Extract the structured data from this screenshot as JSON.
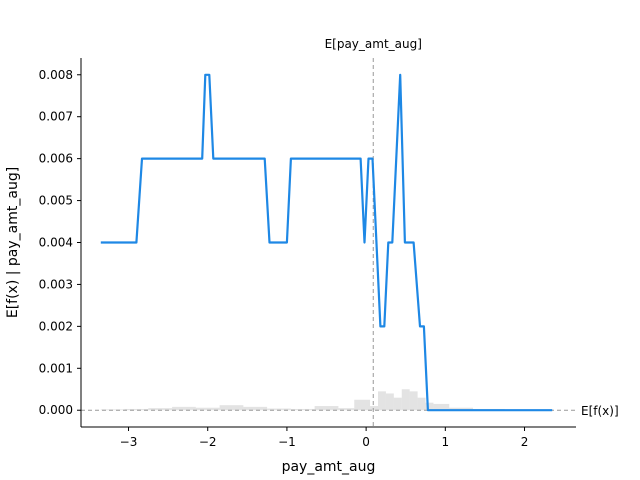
{
  "chart_data": {
    "type": "line",
    "xlabel": "pay_amt_aug",
    "ylabel": "E[f(x) | pay_amt_aug]",
    "xlim": [
      -3.6,
      2.65
    ],
    "ylim": [
      -0.0004,
      0.0084
    ],
    "xticks": [
      -3,
      -2,
      -1,
      0,
      1,
      2
    ],
    "xtick_labels": [
      "−3",
      "−2",
      "−1",
      "0",
      "1",
      "2"
    ],
    "yticks": [
      0.0,
      0.001,
      0.002,
      0.003,
      0.004,
      0.005,
      0.006,
      0.007,
      0.008
    ],
    "ytick_labels": [
      "0.000",
      "0.001",
      "0.002",
      "0.003",
      "0.004",
      "0.005",
      "0.006",
      "0.007",
      "0.008"
    ],
    "grid": false,
    "line_color": "#1E88E5",
    "reference_lines": {
      "vertical_x": 0.09,
      "vertical_label": "E[pay_amt_aug]",
      "horizontal_y": 0.0,
      "horizontal_label": "E[f(x)]",
      "color": "#999999"
    },
    "series": [
      {
        "x": [
          -3.35,
          -2.9,
          -2.83,
          -2.07,
          -2.03,
          -1.98,
          -1.93,
          -1.28,
          -1.22,
          -1.0,
          -0.95,
          -0.07,
          -0.02,
          0.03,
          0.08,
          0.18,
          0.23,
          0.28,
          0.33,
          0.43,
          0.49,
          0.55,
          0.6,
          0.68,
          0.73,
          0.78,
          0.85,
          2.35
        ],
        "y": [
          0.004,
          0.004,
          0.006,
          0.006,
          0.008,
          0.008,
          0.006,
          0.006,
          0.004,
          0.004,
          0.006,
          0.006,
          0.004,
          0.006,
          0.006,
          0.002,
          0.002,
          0.004,
          0.004,
          0.008,
          0.004,
          0.004,
          0.004,
          0.002,
          0.002,
          0.0,
          0.0,
          0.0
        ]
      }
    ],
    "histogram": {
      "color": "#cccccc",
      "bins": [
        {
          "x0": -3.35,
          "x1": -3.05,
          "h": 2e-05
        },
        {
          "x0": -3.05,
          "x1": -2.75,
          "h": 3e-05
        },
        {
          "x0": -2.75,
          "x1": -2.45,
          "h": 5e-05
        },
        {
          "x0": -2.45,
          "x1": -2.15,
          "h": 8e-05
        },
        {
          "x0": -2.15,
          "x1": -1.85,
          "h": 6e-05
        },
        {
          "x0": -1.85,
          "x1": -1.55,
          "h": 0.00012
        },
        {
          "x0": -1.55,
          "x1": -1.25,
          "h": 8e-05
        },
        {
          "x0": -1.25,
          "x1": -0.95,
          "h": 4e-05
        },
        {
          "x0": -0.95,
          "x1": -0.65,
          "h": 3e-05
        },
        {
          "x0": -0.65,
          "x1": -0.35,
          "h": 0.0001
        },
        {
          "x0": -0.35,
          "x1": -0.15,
          "h": 5e-05
        },
        {
          "x0": -0.15,
          "x1": 0.05,
          "h": 0.00025
        },
        {
          "x0": 0.05,
          "x1": 0.15,
          "h": 0.0001
        },
        {
          "x0": 0.15,
          "x1": 0.25,
          "h": 0.00045
        },
        {
          "x0": 0.25,
          "x1": 0.35,
          "h": 0.0004
        },
        {
          "x0": 0.35,
          "x1": 0.45,
          "h": 0.0003
        },
        {
          "x0": 0.45,
          "x1": 0.55,
          "h": 0.0005
        },
        {
          "x0": 0.55,
          "x1": 0.65,
          "h": 0.00045
        },
        {
          "x0": 0.65,
          "x1": 0.75,
          "h": 0.0003
        },
        {
          "x0": 0.75,
          "x1": 0.85,
          "h": 0.00018
        },
        {
          "x0": 0.85,
          "x1": 1.05,
          "h": 0.00015
        },
        {
          "x0": 1.05,
          "x1": 1.35,
          "h": 6e-05
        },
        {
          "x0": 1.35,
          "x1": 1.75,
          "h": 3e-05
        },
        {
          "x0": 1.75,
          "x1": 2.35,
          "h": 1e-05
        }
      ]
    }
  }
}
